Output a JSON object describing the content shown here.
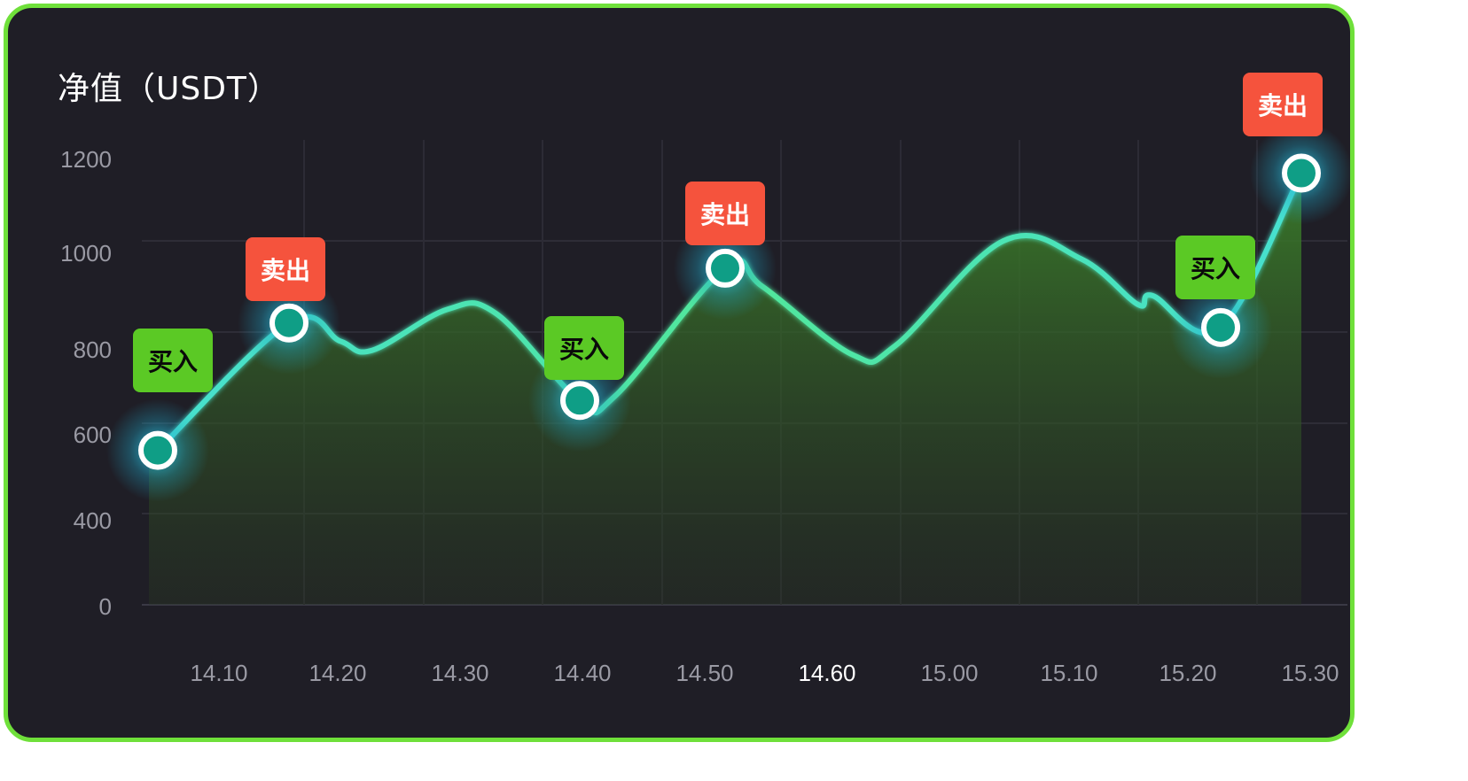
{
  "card": {
    "title": "净值（USDT）",
    "border_color": "#6fe03a",
    "background": "#1f1e26"
  },
  "chart_data": {
    "type": "area",
    "title": "净值（USDT）",
    "xlabel": "",
    "ylabel": "",
    "y_ticks": [
      "1200",
      "1000",
      "800",
      "600",
      "400",
      "0"
    ],
    "x_ticks": [
      "14.10",
      "14.20",
      "14.30",
      "14.40",
      "14.50",
      "14.60",
      "15.00",
      "15.10",
      "15.20",
      "15.30"
    ],
    "active_x_tick": "14.60",
    "grid": true,
    "line_color": "#4de6a0",
    "area_color": "#3a7d2a",
    "series": [
      {
        "values": [
          540,
          820,
          780,
          760,
          850,
          840,
          650,
          660,
          940,
          900,
          750,
          770,
          1000,
          960,
          860,
          880,
          810,
          1150
        ]
      }
    ],
    "annotations": [
      {
        "label": "买入",
        "type": "buy",
        "value": 540,
        "color": "#5bc925"
      },
      {
        "label": "卖出",
        "type": "sell",
        "value": 820,
        "color": "#f5533d"
      },
      {
        "label": "买入",
        "type": "buy",
        "value": 650,
        "color": "#5bc925"
      },
      {
        "label": "卖出",
        "type": "sell",
        "value": 940,
        "color": "#f5533d"
      },
      {
        "label": "买入",
        "type": "buy",
        "value": 810,
        "color": "#5bc925"
      },
      {
        "label": "卖出",
        "type": "sell",
        "value": 1150,
        "color": "#f5533d"
      }
    ]
  }
}
